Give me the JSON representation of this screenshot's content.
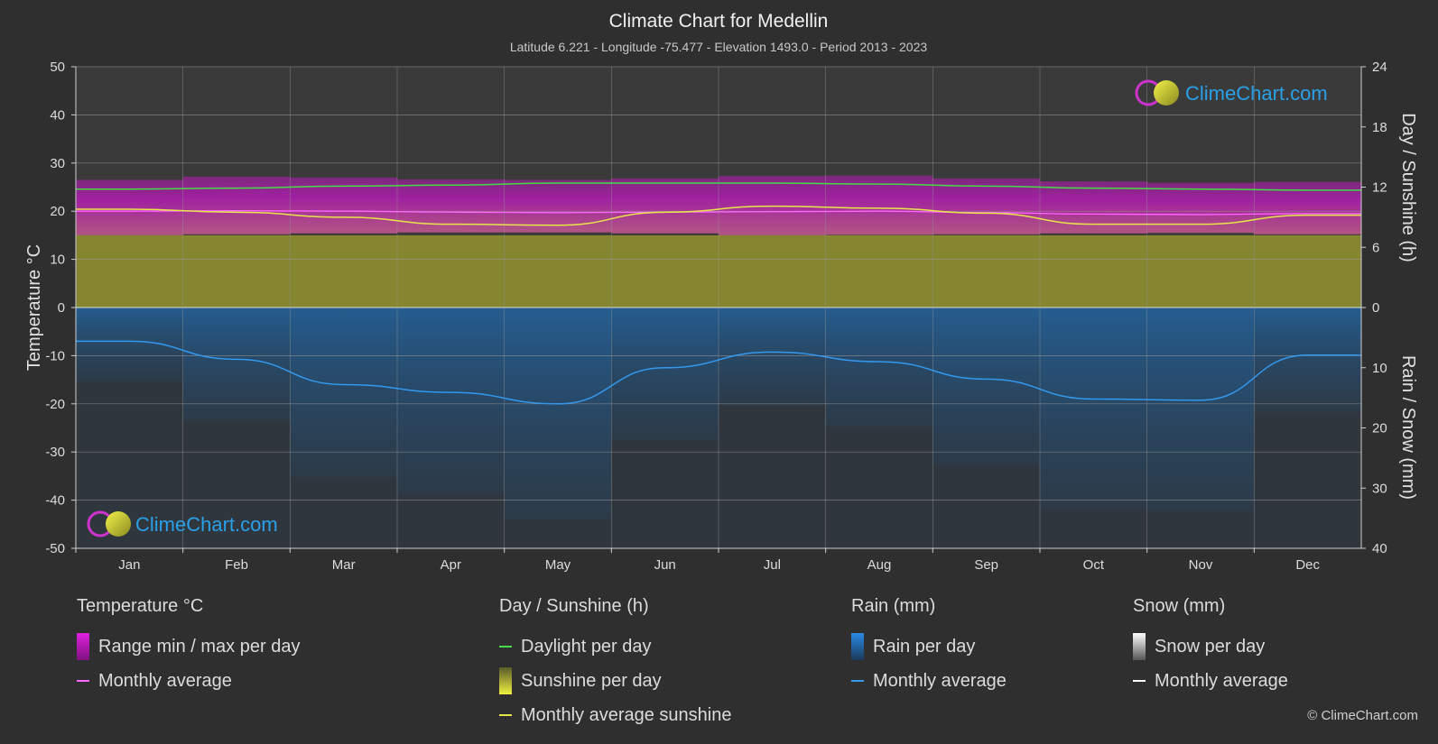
{
  "title": "Climate Chart for Medellin",
  "subtitle": "Latitude 6.221 - Longitude -75.477 - Elevation 1493.0 - Period 2013 - 2023",
  "logo_text": "ClimeChart.com",
  "copyright": "© ClimeChart.com",
  "chart_data": {
    "type": "area",
    "categories": [
      "Jan",
      "Feb",
      "Mar",
      "Apr",
      "May",
      "Jun",
      "Jul",
      "Aug",
      "Sep",
      "Oct",
      "Nov",
      "Dec"
    ],
    "axes": {
      "left": {
        "label": "Temperature °C",
        "min": -50,
        "max": 50,
        "ticks": [
          50,
          40,
          30,
          20,
          10,
          0,
          -10,
          -20,
          -30,
          -40,
          -50
        ]
      },
      "right_top": {
        "label": "Day / Sunshine (h)",
        "min": 0,
        "max": 24,
        "ticks": [
          24,
          18,
          12,
          6,
          0
        ]
      },
      "right_bottom": {
        "label": "Rain / Snow (mm)",
        "min": 0,
        "max": 40,
        "ticks": [
          0,
          10,
          20,
          30,
          40
        ]
      }
    },
    "grid": true,
    "series": [
      {
        "name": "Daylight per day",
        "unit": "h",
        "color": "#44dd44",
        "values": [
          11.8,
          11.9,
          12.1,
          12.2,
          12.4,
          12.4,
          12.4,
          12.3,
          12.1,
          11.9,
          11.8,
          11.7
        ]
      },
      {
        "name": "Monthly average sunshine",
        "unit": "h",
        "color": "#e6e64a",
        "values": [
          9.8,
          9.5,
          9.0,
          8.3,
          8.2,
          9.5,
          10.1,
          9.9,
          9.4,
          8.3,
          8.3,
          9.2
        ]
      },
      {
        "name": "Sunshine per day",
        "unit": "h",
        "color": "#b9b93a",
        "values": [
          9.8,
          9.5,
          9.0,
          8.3,
          8.2,
          9.5,
          10.1,
          9.9,
          9.4,
          8.3,
          8.3,
          9.2
        ]
      },
      {
        "name": "Range min / max per day",
        "unit": "°C",
        "color": "#d020d0",
        "min": [
          15.0,
          15.2,
          15.4,
          15.6,
          15.6,
          15.4,
          15.0,
          15.1,
          15.2,
          15.4,
          15.5,
          15.2
        ],
        "max": [
          26.5,
          27.2,
          27.0,
          26.6,
          26.5,
          26.8,
          27.3,
          27.4,
          26.8,
          26.2,
          25.9,
          26.1
        ]
      },
      {
        "name": "Monthly average",
        "unit": "°C",
        "color": "#ff66ff",
        "values": [
          20.0,
          20.1,
          20.0,
          19.8,
          19.7,
          19.8,
          19.9,
          20.0,
          19.7,
          19.4,
          19.3,
          19.5
        ]
      },
      {
        "name": "Rain per day",
        "unit": "mm",
        "color": "#2a7fd4",
        "values": [
          5.6,
          8.6,
          12.8,
          14.1,
          16.0,
          10.0,
          7.4,
          9.0,
          11.9,
          15.2,
          15.4,
          7.9
        ]
      },
      {
        "name": "Monthly average",
        "unit": "mm",
        "color": "#3399ee",
        "values": [
          5.6,
          8.6,
          12.8,
          14.1,
          16.0,
          10.0,
          7.4,
          9.0,
          11.9,
          15.2,
          15.4,
          7.9
        ]
      },
      {
        "name": "Snow per day",
        "unit": "mm",
        "color": "#ffffff",
        "values": [
          0,
          0,
          0,
          0,
          0,
          0,
          0,
          0,
          0,
          0,
          0,
          0
        ]
      }
    ]
  },
  "legend": {
    "temperature": {
      "title": "Temperature °C",
      "items": [
        {
          "label": "Range min / max per day",
          "kind": "box",
          "color": "#d020d0"
        },
        {
          "label": "Monthly average",
          "kind": "line",
          "color": "#ff66ff"
        }
      ]
    },
    "sun": {
      "title": "Day / Sunshine (h)",
      "items": [
        {
          "label": "Daylight per day",
          "kind": "line",
          "color": "#44dd44"
        },
        {
          "label": "Sunshine per day",
          "kind": "box",
          "color": "#d8d83a"
        },
        {
          "label": "Monthly average sunshine",
          "kind": "line",
          "color": "#e6e64a"
        }
      ]
    },
    "rain": {
      "title": "Rain (mm)",
      "items": [
        {
          "label": "Rain per day",
          "kind": "box",
          "color": "#2a7fd4"
        },
        {
          "label": "Monthly average",
          "kind": "line",
          "color": "#3399ee"
        }
      ]
    },
    "snow": {
      "title": "Snow (mm)",
      "items": [
        {
          "label": "Snow per day",
          "kind": "box",
          "color": "#dddddd"
        },
        {
          "label": "Monthly average",
          "kind": "line",
          "color": "#ffffff"
        }
      ]
    }
  }
}
